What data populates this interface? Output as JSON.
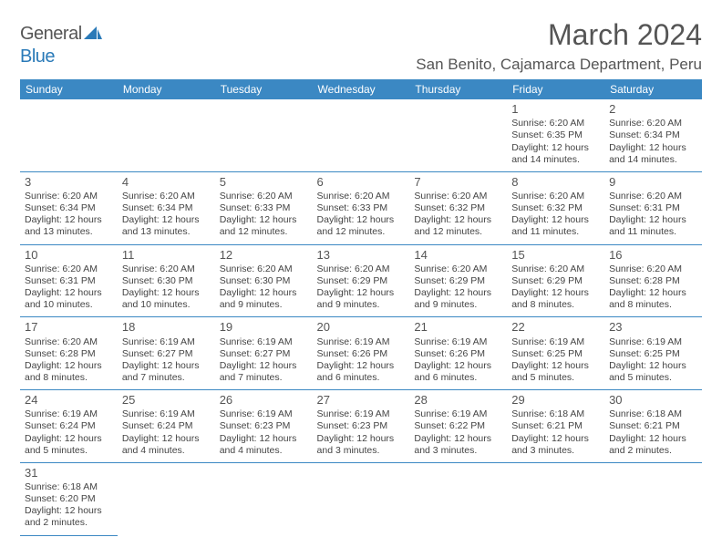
{
  "logo": {
    "text1": "General",
    "text2": "Blue"
  },
  "title": "March 2024",
  "location": "San Benito, Cajamarca Department, Peru",
  "dayHeaders": [
    "Sunday",
    "Monday",
    "Tuesday",
    "Wednesday",
    "Thursday",
    "Friday",
    "Saturday"
  ],
  "colors": {
    "headerBg": "#3b88c3",
    "headerText": "#ffffff",
    "border": "#3b88c3",
    "bodyText": "#444444",
    "titleText": "#555555",
    "logoAccent": "#2a7ab8"
  },
  "weeks": [
    [
      null,
      null,
      null,
      null,
      null,
      {
        "n": "1",
        "sr": "Sunrise: 6:20 AM",
        "ss": "Sunset: 6:35 PM",
        "d1": "Daylight: 12 hours",
        "d2": "and 14 minutes."
      },
      {
        "n": "2",
        "sr": "Sunrise: 6:20 AM",
        "ss": "Sunset: 6:34 PM",
        "d1": "Daylight: 12 hours",
        "d2": "and 14 minutes."
      }
    ],
    [
      {
        "n": "3",
        "sr": "Sunrise: 6:20 AM",
        "ss": "Sunset: 6:34 PM",
        "d1": "Daylight: 12 hours",
        "d2": "and 13 minutes."
      },
      {
        "n": "4",
        "sr": "Sunrise: 6:20 AM",
        "ss": "Sunset: 6:34 PM",
        "d1": "Daylight: 12 hours",
        "d2": "and 13 minutes."
      },
      {
        "n": "5",
        "sr": "Sunrise: 6:20 AM",
        "ss": "Sunset: 6:33 PM",
        "d1": "Daylight: 12 hours",
        "d2": "and 12 minutes."
      },
      {
        "n": "6",
        "sr": "Sunrise: 6:20 AM",
        "ss": "Sunset: 6:33 PM",
        "d1": "Daylight: 12 hours",
        "d2": "and 12 minutes."
      },
      {
        "n": "7",
        "sr": "Sunrise: 6:20 AM",
        "ss": "Sunset: 6:32 PM",
        "d1": "Daylight: 12 hours",
        "d2": "and 12 minutes."
      },
      {
        "n": "8",
        "sr": "Sunrise: 6:20 AM",
        "ss": "Sunset: 6:32 PM",
        "d1": "Daylight: 12 hours",
        "d2": "and 11 minutes."
      },
      {
        "n": "9",
        "sr": "Sunrise: 6:20 AM",
        "ss": "Sunset: 6:31 PM",
        "d1": "Daylight: 12 hours",
        "d2": "and 11 minutes."
      }
    ],
    [
      {
        "n": "10",
        "sr": "Sunrise: 6:20 AM",
        "ss": "Sunset: 6:31 PM",
        "d1": "Daylight: 12 hours",
        "d2": "and 10 minutes."
      },
      {
        "n": "11",
        "sr": "Sunrise: 6:20 AM",
        "ss": "Sunset: 6:30 PM",
        "d1": "Daylight: 12 hours",
        "d2": "and 10 minutes."
      },
      {
        "n": "12",
        "sr": "Sunrise: 6:20 AM",
        "ss": "Sunset: 6:30 PM",
        "d1": "Daylight: 12 hours",
        "d2": "and 9 minutes."
      },
      {
        "n": "13",
        "sr": "Sunrise: 6:20 AM",
        "ss": "Sunset: 6:29 PM",
        "d1": "Daylight: 12 hours",
        "d2": "and 9 minutes."
      },
      {
        "n": "14",
        "sr": "Sunrise: 6:20 AM",
        "ss": "Sunset: 6:29 PM",
        "d1": "Daylight: 12 hours",
        "d2": "and 9 minutes."
      },
      {
        "n": "15",
        "sr": "Sunrise: 6:20 AM",
        "ss": "Sunset: 6:29 PM",
        "d1": "Daylight: 12 hours",
        "d2": "and 8 minutes."
      },
      {
        "n": "16",
        "sr": "Sunrise: 6:20 AM",
        "ss": "Sunset: 6:28 PM",
        "d1": "Daylight: 12 hours",
        "d2": "and 8 minutes."
      }
    ],
    [
      {
        "n": "17",
        "sr": "Sunrise: 6:20 AM",
        "ss": "Sunset: 6:28 PM",
        "d1": "Daylight: 12 hours",
        "d2": "and 8 minutes."
      },
      {
        "n": "18",
        "sr": "Sunrise: 6:19 AM",
        "ss": "Sunset: 6:27 PM",
        "d1": "Daylight: 12 hours",
        "d2": "and 7 minutes."
      },
      {
        "n": "19",
        "sr": "Sunrise: 6:19 AM",
        "ss": "Sunset: 6:27 PM",
        "d1": "Daylight: 12 hours",
        "d2": "and 7 minutes."
      },
      {
        "n": "20",
        "sr": "Sunrise: 6:19 AM",
        "ss": "Sunset: 6:26 PM",
        "d1": "Daylight: 12 hours",
        "d2": "and 6 minutes."
      },
      {
        "n": "21",
        "sr": "Sunrise: 6:19 AM",
        "ss": "Sunset: 6:26 PM",
        "d1": "Daylight: 12 hours",
        "d2": "and 6 minutes."
      },
      {
        "n": "22",
        "sr": "Sunrise: 6:19 AM",
        "ss": "Sunset: 6:25 PM",
        "d1": "Daylight: 12 hours",
        "d2": "and 5 minutes."
      },
      {
        "n": "23",
        "sr": "Sunrise: 6:19 AM",
        "ss": "Sunset: 6:25 PM",
        "d1": "Daylight: 12 hours",
        "d2": "and 5 minutes."
      }
    ],
    [
      {
        "n": "24",
        "sr": "Sunrise: 6:19 AM",
        "ss": "Sunset: 6:24 PM",
        "d1": "Daylight: 12 hours",
        "d2": "and 5 minutes."
      },
      {
        "n": "25",
        "sr": "Sunrise: 6:19 AM",
        "ss": "Sunset: 6:24 PM",
        "d1": "Daylight: 12 hours",
        "d2": "and 4 minutes."
      },
      {
        "n": "26",
        "sr": "Sunrise: 6:19 AM",
        "ss": "Sunset: 6:23 PM",
        "d1": "Daylight: 12 hours",
        "d2": "and 4 minutes."
      },
      {
        "n": "27",
        "sr": "Sunrise: 6:19 AM",
        "ss": "Sunset: 6:23 PM",
        "d1": "Daylight: 12 hours",
        "d2": "and 3 minutes."
      },
      {
        "n": "28",
        "sr": "Sunrise: 6:19 AM",
        "ss": "Sunset: 6:22 PM",
        "d1": "Daylight: 12 hours",
        "d2": "and 3 minutes."
      },
      {
        "n": "29",
        "sr": "Sunrise: 6:18 AM",
        "ss": "Sunset: 6:21 PM",
        "d1": "Daylight: 12 hours",
        "d2": "and 3 minutes."
      },
      {
        "n": "30",
        "sr": "Sunrise: 6:18 AM",
        "ss": "Sunset: 6:21 PM",
        "d1": "Daylight: 12 hours",
        "d2": "and 2 minutes."
      }
    ],
    [
      {
        "n": "31",
        "sr": "Sunrise: 6:18 AM",
        "ss": "Sunset: 6:20 PM",
        "d1": "Daylight: 12 hours",
        "d2": "and 2 minutes."
      },
      null,
      null,
      null,
      null,
      null,
      null
    ]
  ]
}
